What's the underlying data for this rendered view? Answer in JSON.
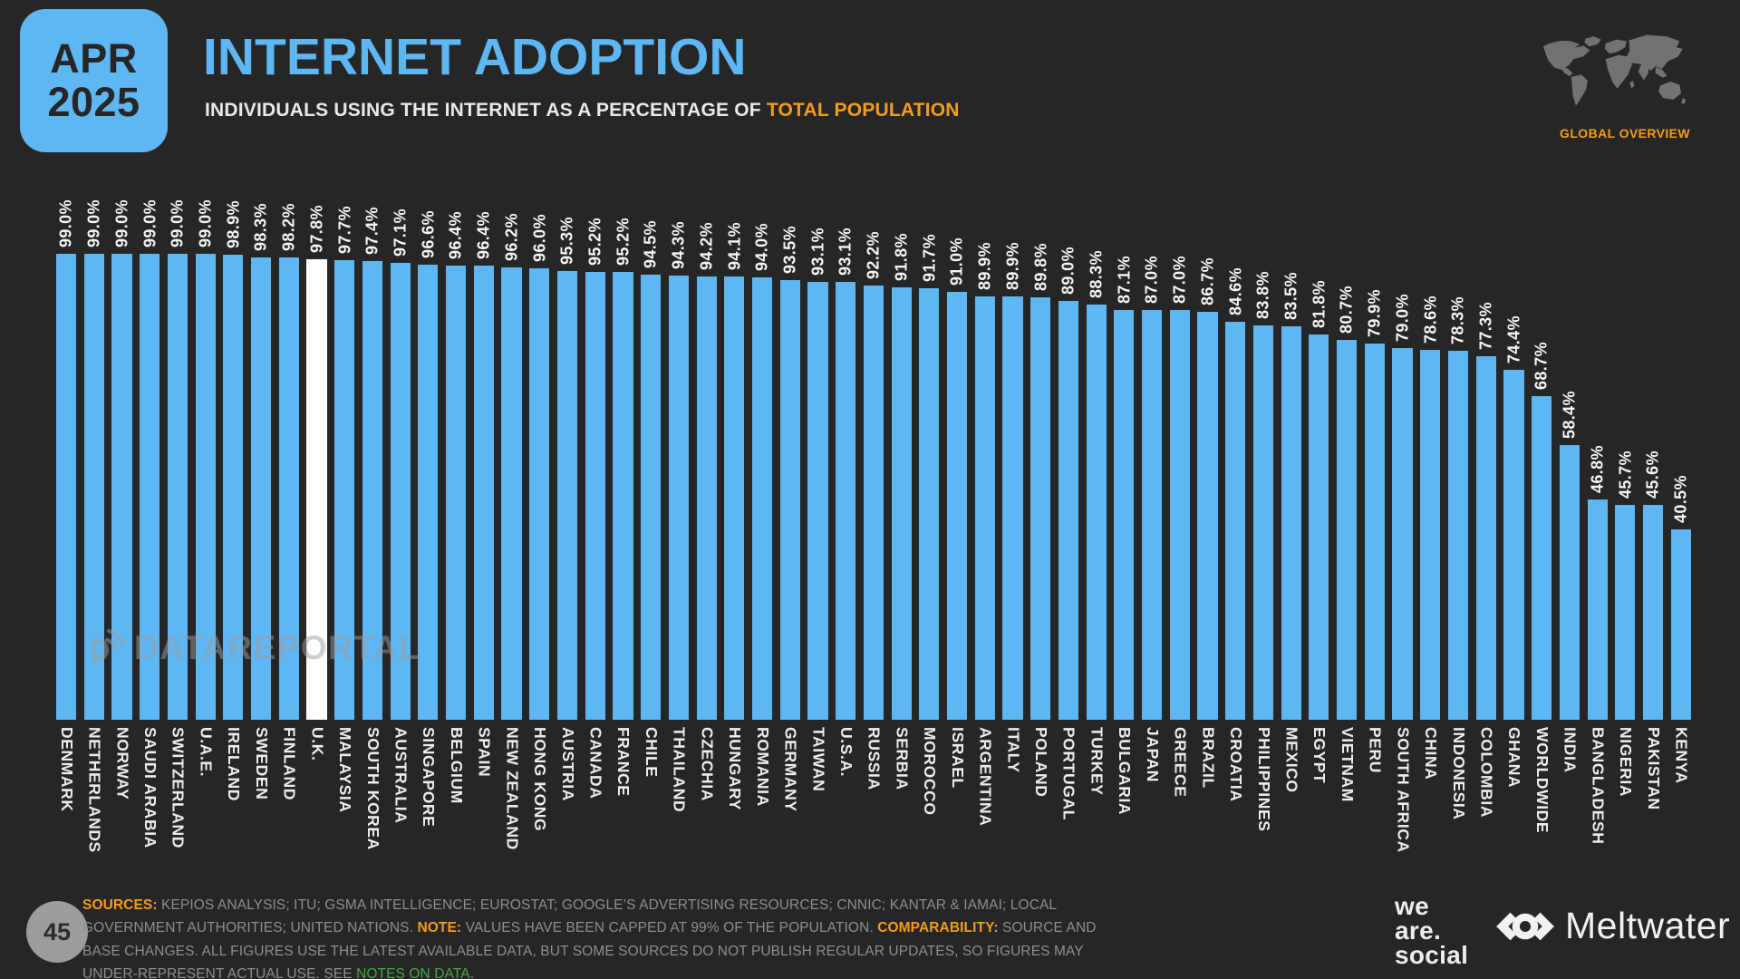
{
  "header": {
    "badge_month": "APR",
    "badge_year": "2025",
    "title": "INTERNET ADOPTION",
    "subtitle_prefix": "INDIVIDUALS USING THE INTERNET AS A PERCENTAGE OF ",
    "subtitle_highlight": "TOTAL POPULATION",
    "overview_label": "GLOBAL OVERVIEW"
  },
  "watermark": {
    "text": "DATAREPORTAL"
  },
  "chart_data": {
    "type": "bar",
    "title": "INTERNET ADOPTION",
    "subtitle": "INDIVIDUALS USING THE INTERNET AS A PERCENTAGE OF TOTAL POPULATION",
    "value_suffix": "%",
    "ylim": [
      0,
      100
    ],
    "grid": false,
    "legend": "none",
    "note": "values capped at 99% of population",
    "bar_color": "#5EB6F2",
    "highlight_color": "#FFFFFF",
    "highlight_category": "U.K.",
    "highlight_index": 9,
    "categories": [
      "DENMARK",
      "NETHERLANDS",
      "NORWAY",
      "SAUDI ARABIA",
      "SWITZERLAND",
      "U.A.E.",
      "IRELAND",
      "SWEDEN",
      "FINLAND",
      "U.K.",
      "MALAYSIA",
      "SOUTH KOREA",
      "AUSTRALIA",
      "SINGAPORE",
      "BELGIUM",
      "SPAIN",
      "NEW ZEALAND",
      "HONG KONG",
      "AUSTRIA",
      "CANADA",
      "FRANCE",
      "CHILE",
      "THAILAND",
      "CZECHIA",
      "HUNGARY",
      "ROMANIA",
      "GERMANY",
      "TAIWAN",
      "U.S.A.",
      "RUSSIA",
      "SERBIA",
      "MOROCCO",
      "ISRAEL",
      "ARGENTINA",
      "ITALY",
      "POLAND",
      "PORTUGAL",
      "TURKEY",
      "BULGARIA",
      "JAPAN",
      "GREECE",
      "BRAZIL",
      "CROATIA",
      "PHILIPPINES",
      "MEXICO",
      "EGYPT",
      "VIETNAM",
      "PERU",
      "SOUTH AFRICA",
      "CHINA",
      "INDONESIA",
      "COLOMBIA",
      "GHANA",
      "WORLDWIDE",
      "INDIA",
      "BANGLADESH",
      "NIGERIA",
      "PAKISTAN",
      "KENYA"
    ],
    "values": [
      99.0,
      99.0,
      99.0,
      99.0,
      99.0,
      99.0,
      98.9,
      98.3,
      98.2,
      97.8,
      97.7,
      97.4,
      97.1,
      96.6,
      96.4,
      96.4,
      96.2,
      96.0,
      95.3,
      95.2,
      95.2,
      94.5,
      94.3,
      94.2,
      94.1,
      94.0,
      93.5,
      93.1,
      93.1,
      92.2,
      91.8,
      91.7,
      91.0,
      89.9,
      89.9,
      89.8,
      89.0,
      88.3,
      87.1,
      87.0,
      87.0,
      86.7,
      84.6,
      83.8,
      83.5,
      81.8,
      80.7,
      79.9,
      79.0,
      78.6,
      78.3,
      77.3,
      74.4,
      68.7,
      58.4,
      46.8,
      45.7,
      45.6,
      40.5
    ]
  },
  "footer": {
    "page_number": "45",
    "sources_label": "SOURCES:",
    "sources_text": " KEPIOS ANALYSIS; ITU; GSMA INTELLIGENCE; EUROSTAT; GOOGLE’S ADVERTISING RESOURCES; CNNIC; KANTAR & IAMAI; LOCAL GOVERNMENT AUTHORITIES; UNITED NATIONS. ",
    "note_label": "NOTE:",
    "note_text": " VALUES HAVE BEEN CAPPED AT 99% OF THE POPULATION. ",
    "comparability_label": "COMPARABILITY:",
    "comparability_text": " SOURCE AND BASE CHANGES. ALL FIGURES USE THE LATEST AVAILABLE DATA, BUT SOME SOURCES DO NOT PUBLISH REGULAR UPDATES, SO FIGURES MAY UNDER-REPRESENT ACTUAL USE. SEE ",
    "notes_link": "NOTES ON DATA",
    "period": ".",
    "wearesocial_lines": [
      "we",
      "are.",
      "social"
    ],
    "meltwater_label": "Meltwater"
  },
  "colors": {
    "background": "#262626",
    "accent_blue": "#5EB6F2",
    "accent_orange": "#F49C1C",
    "bar_highlight": "#FFFFFF",
    "footer_gray": "#8F8F8F",
    "link_green": "#46A846",
    "map_gray": "#777777",
    "badge_text": "#262626"
  }
}
